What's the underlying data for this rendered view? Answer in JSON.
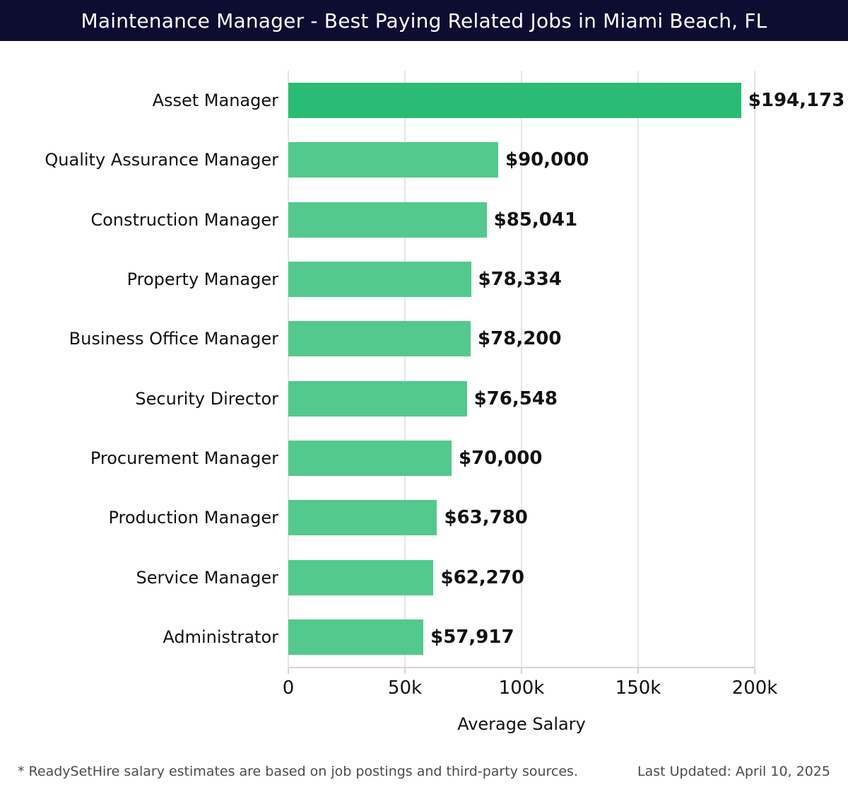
{
  "header": {
    "title": "Maintenance Manager - Best Paying Related Jobs in Miami Beach, FL"
  },
  "chart_data": {
    "type": "bar",
    "orientation": "horizontal",
    "title": "Maintenance Manager - Best Paying Related Jobs in Miami Beach, FL",
    "xlabel": "Average Salary",
    "ylabel": "",
    "xlim": [
      0,
      200000
    ],
    "grid": true,
    "x_ticks": [
      {
        "value": 0,
        "label": "0"
      },
      {
        "value": 50000,
        "label": "50k"
      },
      {
        "value": 100000,
        "label": "100k"
      },
      {
        "value": 150000,
        "label": "150k"
      },
      {
        "value": 200000,
        "label": "200k"
      }
    ],
    "categories": [
      "Asset Manager",
      "Quality Assurance Manager",
      "Construction Manager",
      "Property Manager",
      "Business Office Manager",
      "Security Director",
      "Procurement Manager",
      "Production Manager",
      "Service Manager",
      "Administrator"
    ],
    "values": [
      194173,
      90000,
      85041,
      78334,
      78200,
      76548,
      70000,
      63780,
      62270,
      57917
    ],
    "value_labels": [
      "$194,173",
      "$90,000",
      "$85,041",
      "$78,334",
      "$78,200",
      "$76,548",
      "$70,000",
      "$63,780",
      "$62,270",
      "$57,917"
    ],
    "highlight_index": 0,
    "legend": null,
    "colors": {
      "bar": "#53c98d",
      "bar_highlight": "#2abb74",
      "gridline": "#e5e5e5",
      "axis_line": "#d4d4d4",
      "header_bg": "#0c0d31",
      "text": "#111111",
      "footer_text": "#4b4b4b"
    }
  },
  "footer": {
    "note": "* ReadySetHire salary estimates are based on job postings and third-party sources.",
    "last_updated": "Last Updated: April 10, 2025"
  }
}
